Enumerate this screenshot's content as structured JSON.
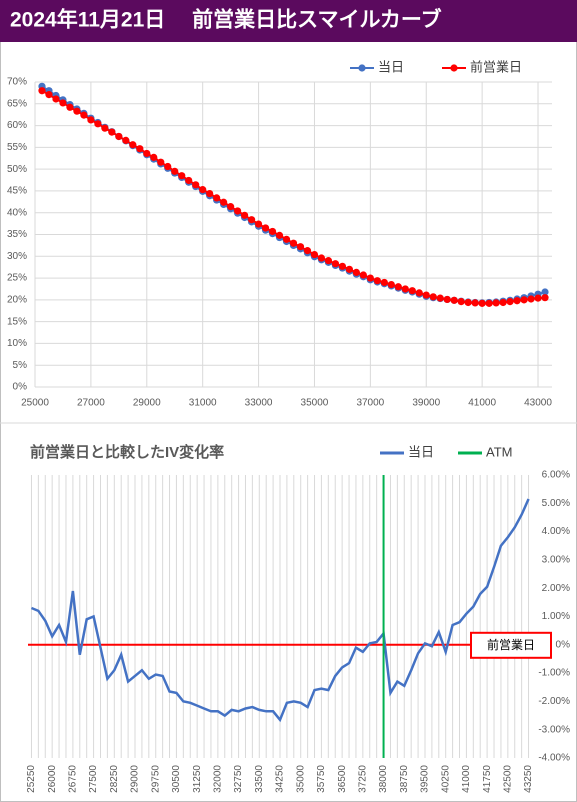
{
  "header": {
    "title": "2024年11月21日　 前営業日比スマイルカーブ"
  },
  "chart_data": [
    {
      "type": "line",
      "x": [
        25250,
        25500,
        25750,
        26000,
        26250,
        26500,
        26750,
        27000,
        27250,
        27500,
        27750,
        28000,
        28250,
        28500,
        28750,
        29000,
        29250,
        29500,
        29750,
        30000,
        30250,
        30500,
        30750,
        31000,
        31250,
        31500,
        31750,
        32000,
        32250,
        32500,
        32750,
        33000,
        33250,
        33500,
        33750,
        34000,
        34250,
        34500,
        34750,
        35000,
        35250,
        35500,
        35750,
        36000,
        36250,
        36500,
        36750,
        37000,
        37250,
        37500,
        37750,
        38000,
        38250,
        38500,
        38750,
        39000,
        39250,
        39500,
        39750,
        40000,
        40250,
        40500,
        40750,
        41000,
        41250,
        41500,
        41750,
        42000,
        42250,
        42500,
        42750,
        43000,
        43250
      ],
      "series": [
        {
          "name": "当日",
          "color": "#4472c4",
          "values": [
            69.0,
            68.0,
            66.9,
            65.9,
            64.8,
            63.8,
            62.8,
            61.7,
            60.7,
            59.6,
            58.6,
            57.5,
            56.5,
            55.4,
            54.4,
            53.3,
            52.3,
            51.2,
            50.2,
            49.1,
            48.1,
            47.0,
            46.0,
            44.9,
            43.9,
            42.9,
            41.9,
            40.9,
            39.9,
            38.9,
            37.9,
            36.9,
            36.0,
            35.2,
            34.3,
            33.4,
            32.5,
            31.7,
            30.8,
            29.9,
            29.2,
            28.6,
            27.9,
            27.3,
            26.6,
            25.9,
            25.3,
            24.6,
            24.1,
            23.7,
            23.2,
            22.7,
            22.2,
            21.8,
            21.3,
            20.8,
            20.5,
            20.3,
            20.1,
            19.9,
            19.7,
            19.5,
            19.4,
            19.3,
            19.4,
            19.5,
            19.7,
            19.9,
            20.2,
            20.5,
            20.9,
            21.3,
            21.8
          ]
        },
        {
          "name": "前営業日",
          "color": "#ff0000",
          "values": [
            68.0,
            67.1,
            66.1,
            65.2,
            64.2,
            63.3,
            62.4,
            61.3,
            60.4,
            59.4,
            58.5,
            57.5,
            56.6,
            55.6,
            54.7,
            53.6,
            52.7,
            51.6,
            50.6,
            49.5,
            48.5,
            47.4,
            46.4,
            45.3,
            44.4,
            43.4,
            42.4,
            41.4,
            40.4,
            39.4,
            38.4,
            37.4,
            36.5,
            35.7,
            34.8,
            33.9,
            33.0,
            32.2,
            31.3,
            30.4,
            29.6,
            29.0,
            28.3,
            27.7,
            27.0,
            26.3,
            25.7,
            25.0,
            24.4,
            24.0,
            23.5,
            23.0,
            22.5,
            22.1,
            21.6,
            21.1,
            20.7,
            20.4,
            20.1,
            19.9,
            19.6,
            19.4,
            19.3,
            19.2,
            19.2,
            19.3,
            19.4,
            19.6,
            19.8,
            20.0,
            20.2,
            20.4,
            20.5
          ]
        }
      ],
      "xlim": [
        25000,
        43500
      ],
      "xticks": [
        25000,
        27000,
        29000,
        31000,
        33000,
        35000,
        37000,
        39000,
        41000,
        43000
      ],
      "ylim": [
        0,
        70
      ],
      "yticks": [
        {
          "value": 0,
          "label": "0%"
        },
        {
          "value": 5,
          "label": "5%"
        },
        {
          "value": 10,
          "label": "10%"
        },
        {
          "value": 15,
          "label": "15%"
        },
        {
          "value": 20,
          "label": "20%"
        },
        {
          "value": 25,
          "label": "25%"
        },
        {
          "value": 30,
          "label": "30%"
        },
        {
          "value": 35,
          "label": "35%"
        },
        {
          "value": 40,
          "label": "40%"
        },
        {
          "value": 45,
          "label": "45%"
        },
        {
          "value": 50,
          "label": "50%"
        },
        {
          "value": 55,
          "label": "55%"
        },
        {
          "value": 60,
          "label": "60%"
        },
        {
          "value": 65,
          "label": "65%"
        },
        {
          "value": 70,
          "label": "70%"
        }
      ],
      "grid": "both",
      "markers": true
    },
    {
      "type": "line",
      "title": "前営業日と比較したIV変化率",
      "x": [
        25250,
        25500,
        25750,
        26000,
        26250,
        26500,
        26750,
        27000,
        27250,
        27500,
        27750,
        28000,
        28250,
        28500,
        28750,
        29000,
        29250,
        29500,
        29750,
        30000,
        30250,
        30500,
        30750,
        31000,
        31250,
        31500,
        31750,
        32000,
        32250,
        32500,
        32750,
        33000,
        33250,
        33500,
        33750,
        34000,
        34250,
        34500,
        34750,
        35000,
        35250,
        35500,
        35750,
        36000,
        36250,
        36500,
        36750,
        37000,
        37250,
        37500,
        37750,
        38000,
        38250,
        38500,
        38750,
        39000,
        39250,
        39500,
        39750,
        40000,
        40250,
        40500,
        40750,
        41000,
        41250,
        41500,
        41750,
        42000,
        42250,
        42500,
        42750,
        43000,
        43250
      ],
      "series": [
        {
          "name": "当日",
          "color": "#4472c4",
          "values": [
            1.3,
            1.2,
            0.85,
            0.3,
            0.7,
            0.1,
            1.9,
            -0.35,
            0.9,
            1.0,
            -0.1,
            -1.2,
            -0.9,
            -0.35,
            -1.3,
            -1.1,
            -0.9,
            -1.2,
            -1.05,
            -1.1,
            -1.65,
            -1.7,
            -2.0,
            -2.05,
            -2.15,
            -2.25,
            -2.35,
            -2.35,
            -2.5,
            -2.3,
            -2.35,
            -2.25,
            -2.2,
            -2.3,
            -2.35,
            -2.35,
            -2.65,
            -2.05,
            -2.0,
            -2.05,
            -2.2,
            -1.6,
            -1.55,
            -1.6,
            -1.1,
            -0.8,
            -0.65,
            -0.1,
            -0.25,
            0.05,
            0.1,
            0.4,
            -1.7,
            -1.3,
            -1.45,
            -0.9,
            -0.3,
            0.05,
            -0.05,
            0.45,
            -0.25,
            0.7,
            0.8,
            1.1,
            1.35,
            1.8,
            2.05,
            2.75,
            3.5,
            3.8,
            4.15,
            4.6,
            5.15
          ]
        }
      ],
      "atm": {
        "name": "ATM",
        "color": "#00b050",
        "x": 38000
      },
      "reference_line": {
        "label": "前営業日",
        "value": 0,
        "color": "#ff0000"
      },
      "xlim": [
        25125,
        43375
      ],
      "xticks": [
        25250,
        26000,
        26750,
        27500,
        28250,
        29000,
        29750,
        30500,
        31250,
        32000,
        32750,
        33500,
        34250,
        35000,
        35750,
        36500,
        37250,
        38000,
        38750,
        39500,
        40250,
        41000,
        41750,
        42500,
        43250
      ],
      "ylim": [
        -4,
        6
      ],
      "yticks": [
        {
          "value": -4,
          "label": "-4.00%"
        },
        {
          "value": -3,
          "label": "-3.00%"
        },
        {
          "value": -2,
          "label": "-2.00%"
        },
        {
          "value": -1,
          "label": "-1.00%"
        },
        {
          "value": 0,
          "label": "0%"
        },
        {
          "value": 1,
          "label": "1.00%"
        },
        {
          "value": 2,
          "label": "2.00%"
        },
        {
          "value": 3,
          "label": "3.00%"
        },
        {
          "value": 4,
          "label": "4.00%"
        },
        {
          "value": 5,
          "label": "5.00%"
        },
        {
          "value": 6,
          "label": "6.00%"
        }
      ],
      "grid": "x",
      "markers": false,
      "xtick_rotation": -90
    }
  ]
}
